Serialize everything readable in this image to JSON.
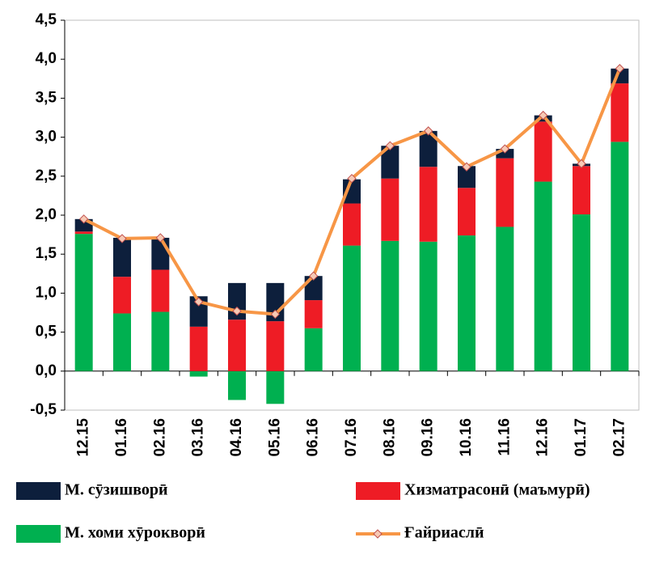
{
  "chart_data": {
    "type": "bar_line",
    "categories": [
      "12.15",
      "01.16",
      "02.16",
      "03.16",
      "04.16",
      "05.16",
      "06.16",
      "07.16",
      "08.16",
      "09.16",
      "10.16",
      "11.16",
      "12.16",
      "01.17",
      "02.17"
    ],
    "series": [
      {
        "name": "М. сӯзишворӣ",
        "type": "bar",
        "color": "#0d1f3c",
        "values": [
          0.16,
          0.5,
          0.41,
          0.39,
          0.47,
          0.49,
          0.31,
          0.31,
          0.42,
          0.46,
          0.28,
          0.12,
          0.08,
          0.03,
          0.19
        ]
      },
      {
        "name": "Хизматрасонӣ (маъмурӣ)",
        "type": "bar",
        "color": "#ee1c25",
        "values": [
          0.03,
          0.47,
          0.54,
          0.57,
          0.66,
          0.64,
          0.36,
          0.54,
          0.8,
          0.96,
          0.61,
          0.88,
          0.77,
          0.62,
          0.75
        ]
      },
      {
        "name": "М. хоми хӯрокворӣ",
        "type": "bar",
        "color": "#00b050",
        "values": [
          1.76,
          0.74,
          0.76,
          -0.07,
          -0.37,
          -0.42,
          0.55,
          1.61,
          1.67,
          1.66,
          1.74,
          1.85,
          2.43,
          2.01,
          2.94
        ]
      },
      {
        "name": "Ғайриаслӣ",
        "type": "line",
        "color": "#f79646",
        "values": [
          1.95,
          1.7,
          1.71,
          0.89,
          0.77,
          0.73,
          1.22,
          2.47,
          2.89,
          3.08,
          2.62,
          2.85,
          3.28,
          2.66,
          3.88
        ]
      }
    ],
    "ylim": [
      -0.5,
      4.5
    ],
    "yticks": [
      {
        "value": -0.5,
        "label": "-0,5"
      },
      {
        "value": 0,
        "label": "0,0"
      },
      {
        "value": 0.5,
        "label": "0,5"
      },
      {
        "value": 1,
        "label": "1,0"
      },
      {
        "value": 1.5,
        "label": "1,5"
      },
      {
        "value": 2,
        "label": "2,0"
      },
      {
        "value": 2.5,
        "label": "2,5"
      },
      {
        "value": 3,
        "label": "3,0"
      },
      {
        "value": 3.5,
        "label": "3,5"
      },
      {
        "value": 4,
        "label": "4,0"
      },
      {
        "value": 4.5,
        "label": "4,5"
      }
    ],
    "grid": false
  }
}
